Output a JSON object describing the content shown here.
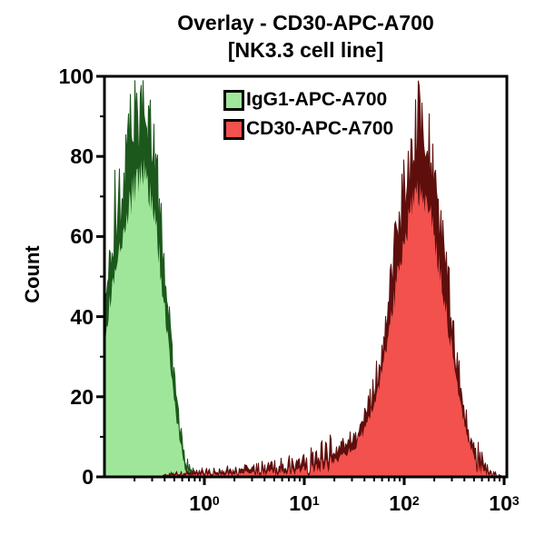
{
  "title": {
    "line1": "Overlay - CD30-APC-A700",
    "line2": "[NK3.3 cell line]"
  },
  "y_axis": {
    "label": "Count",
    "min": 0,
    "max": 100,
    "major_tick_step": 20,
    "minor_tick_step": 10,
    "tick_labels": [
      "0",
      "20",
      "40",
      "60",
      "80",
      "100"
    ]
  },
  "x_axis": {
    "scale": "log10",
    "base": "10",
    "min_exponent": -1,
    "max_exponent": 3,
    "labeled_exponents": [
      0,
      1,
      2,
      3
    ]
  },
  "legend": {
    "items": [
      {
        "label": "IgG1-APC-A700",
        "swatch_color": "#9FE69A",
        "swatch_border": "#000000"
      },
      {
        "label": "CD30-APC-A700",
        "swatch_color": "#F2514D",
        "swatch_border": "#000000"
      }
    ]
  },
  "colors": {
    "background": "#FFFFFF",
    "axis": "#000000",
    "text": "#000000",
    "green_fill": "#9FE69A",
    "green_line": "#1C581C",
    "red_fill": "#F2514D",
    "red_line": "#5E0F0D"
  },
  "chart_data": {
    "type": "area",
    "subtype": "flow-cytometry-histogram-overlay",
    "title": "Overlay - CD30-APC-A700 [NK3.3 cell line]",
    "xlabel": "",
    "ylabel": "Count",
    "x_scale": "log10",
    "x_range_exponents": [
      -1,
      3
    ],
    "ylim": [
      0,
      100
    ],
    "grid": false,
    "legend_position": "top-center-inside",
    "series": [
      {
        "name": "IgG1-APC-A700",
        "fill_color": "#9FE69A",
        "line_color": "#1C581C",
        "peak_x": 0.25,
        "peak_count": 94,
        "points_logx_count": [
          [
            -1.0,
            40
          ],
          [
            -0.96,
            50
          ],
          [
            -0.92,
            58
          ],
          [
            -0.88,
            66
          ],
          [
            -0.84,
            71
          ],
          [
            -0.8,
            76
          ],
          [
            -0.76,
            82
          ],
          [
            -0.72,
            87
          ],
          [
            -0.68,
            91
          ],
          [
            -0.64,
            93
          ],
          [
            -0.6,
            92
          ],
          [
            -0.56,
            89
          ],
          [
            -0.52,
            84
          ],
          [
            -0.48,
            75
          ],
          [
            -0.44,
            64
          ],
          [
            -0.4,
            52
          ],
          [
            -0.36,
            40
          ],
          [
            -0.32,
            28
          ],
          [
            -0.28,
            18
          ],
          [
            -0.24,
            11
          ],
          [
            -0.2,
            6
          ],
          [
            -0.16,
            3
          ],
          [
            -0.12,
            1.5
          ],
          [
            -0.08,
            1
          ],
          [
            0.0,
            0.7
          ],
          [
            0.1,
            0.3
          ],
          [
            0.15,
            0
          ],
          [
            3.0,
            0
          ]
        ]
      },
      {
        "name": "CD30-APC-A700",
        "fill_color": "#F2514D",
        "line_color": "#5E0F0D",
        "peak_x": 140,
        "peak_count": 88,
        "points_logx_count": [
          [
            -1.0,
            0
          ],
          [
            -0.45,
            0
          ],
          [
            -0.35,
            0.6
          ],
          [
            -0.2,
            1
          ],
          [
            0.0,
            1.2
          ],
          [
            0.2,
            1.5
          ],
          [
            0.4,
            1.8
          ],
          [
            0.6,
            2.2
          ],
          [
            0.8,
            2.8
          ],
          [
            1.0,
            3.5
          ],
          [
            1.2,
            5
          ],
          [
            1.35,
            7
          ],
          [
            1.5,
            10
          ],
          [
            1.6,
            14
          ],
          [
            1.7,
            22
          ],
          [
            1.78,
            32
          ],
          [
            1.85,
            45
          ],
          [
            1.92,
            58
          ],
          [
            1.98,
            68
          ],
          [
            2.04,
            78
          ],
          [
            2.1,
            85
          ],
          [
            2.16,
            88
          ],
          [
            2.22,
            84
          ],
          [
            2.28,
            76
          ],
          [
            2.34,
            66
          ],
          [
            2.4,
            54
          ],
          [
            2.46,
            42
          ],
          [
            2.52,
            30
          ],
          [
            2.58,
            20
          ],
          [
            2.64,
            12
          ],
          [
            2.7,
            7
          ],
          [
            2.76,
            4
          ],
          [
            2.82,
            2
          ],
          [
            2.88,
            1
          ],
          [
            2.94,
            0.4
          ],
          [
            3.0,
            0
          ]
        ]
      }
    ]
  }
}
